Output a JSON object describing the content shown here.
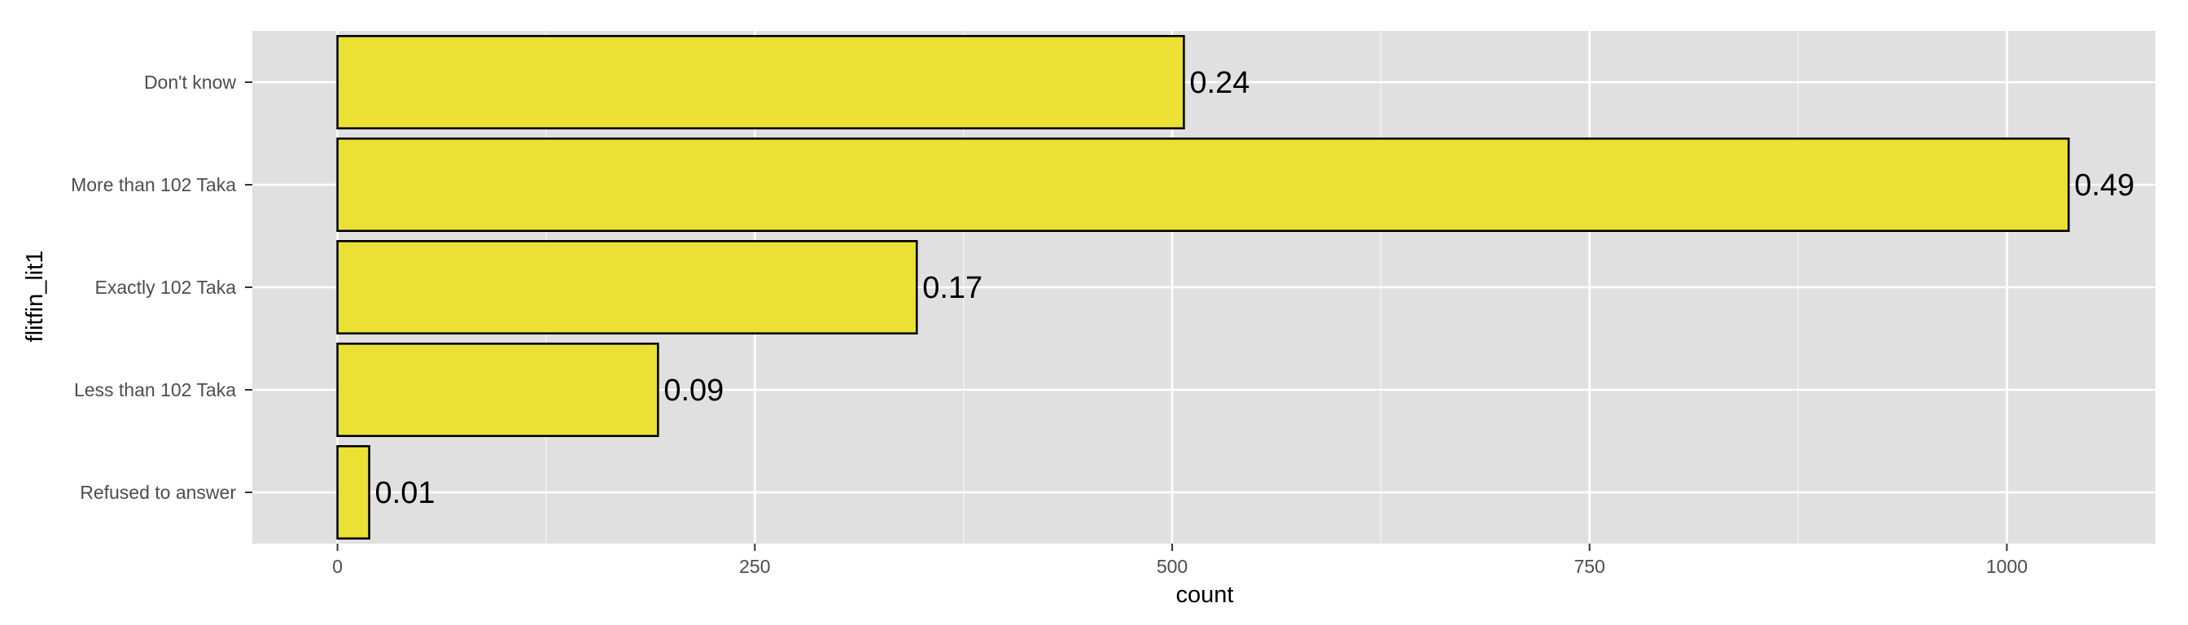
{
  "chart_data": {
    "type": "bar",
    "orientation": "horizontal",
    "categories": [
      "Don't know",
      "More than 102 Taka",
      "Exactly 102 Taka",
      "Less than 102 Taka",
      "Refused to answer"
    ],
    "values": [
      507,
      1037,
      347,
      192,
      19
    ],
    "data_labels": [
      "0.24",
      "0.49",
      "0.17",
      "0.09",
      "0.01"
    ],
    "xlabel": "count",
    "ylabel": "flitfin_lit1",
    "xlim": [
      -51,
      1089
    ],
    "xticks": [
      0,
      250,
      500,
      750,
      1000
    ],
    "xtick_labels": [
      "0",
      "250",
      "500",
      "750",
      "1000"
    ],
    "grid": true,
    "legend": "none",
    "colors": {
      "bar_fill": "#ebe134",
      "bar_stroke": "#000000",
      "panel_background": "#e0e0e0",
      "grid": "#ffffff"
    }
  }
}
